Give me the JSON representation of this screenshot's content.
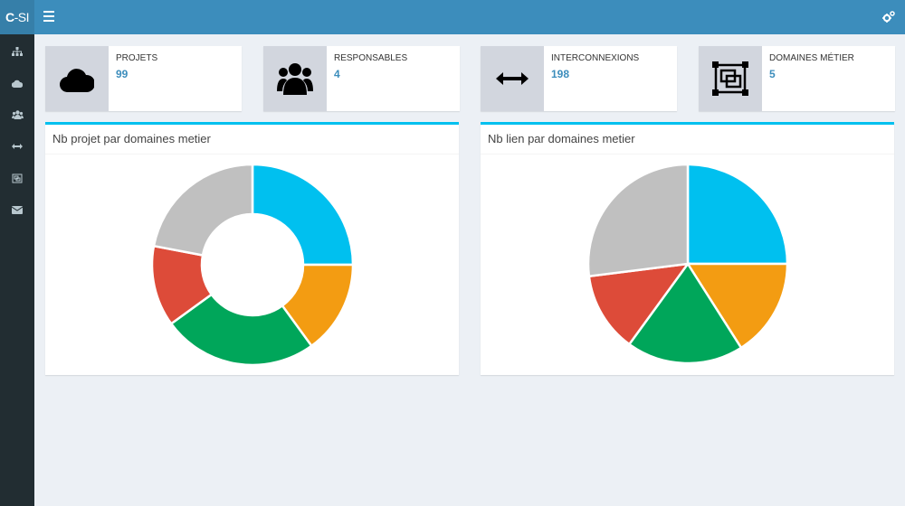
{
  "header": {
    "logo_bold": "C",
    "logo_rest": "-SI"
  },
  "sidebar": {
    "items": [
      {
        "icon": "sitemap-icon"
      },
      {
        "icon": "cloud-icon"
      },
      {
        "icon": "users-icon"
      },
      {
        "icon": "arrows-h-icon"
      },
      {
        "icon": "object-group-icon"
      },
      {
        "icon": "envelope-icon"
      }
    ]
  },
  "stats": [
    {
      "label": "PROJETS",
      "value": "99",
      "icon": "cloud-icon"
    },
    {
      "label": "RESPONSABLES",
      "value": "4",
      "icon": "users-icon"
    },
    {
      "label": "INTERCONNEXIONS",
      "value": "198",
      "icon": "arrows-h-icon"
    },
    {
      "label": "DOMAINES MÉTIER",
      "value": "5",
      "icon": "object-group-icon"
    }
  ],
  "panels": {
    "left_title": "Nb projet par domaines metier",
    "right_title": "Nb lien par domaines metier"
  },
  "colors": {
    "primary": "#3c8dbc",
    "sidebar": "#222d32",
    "slices": [
      "#00c0ef",
      "#f39c12",
      "#00a65a",
      "#dd4b39",
      "#c0c0c0"
    ]
  },
  "chart_data": [
    {
      "type": "pie",
      "variant": "doughnut",
      "values": [
        25,
        15,
        25,
        13,
        22
      ]
    },
    {
      "type": "pie",
      "values": [
        25,
        16,
        19,
        13,
        27
      ]
    }
  ]
}
